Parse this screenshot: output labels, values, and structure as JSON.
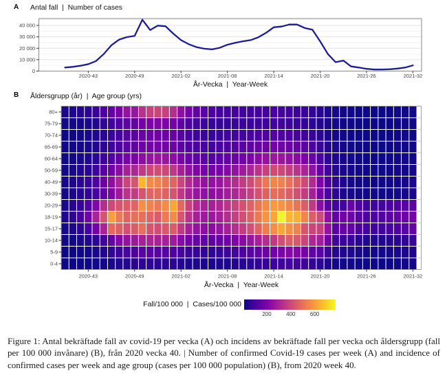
{
  "panel_a": {
    "label": "A",
    "title": "Antal fall  |  Number of cases",
    "x_axis_title": "År-Vecka  |  Year-Week"
  },
  "panel_b": {
    "label": "B",
    "title": "Åldersgrupp (år)  |  Age group (yrs)",
    "x_axis_title": "År-Vecka  |  Year-Week"
  },
  "legend": {
    "label": "Fall/100 000  |  Cases/100 000",
    "ticks": [
      200,
      400,
      600
    ],
    "domain": [
      10,
      775
    ]
  },
  "caption": "Figure 1: Antal bekräftade fall av covid-19 per vecka (A) och incidens av bekräftade fall per vecka och åldersgrupp (fall per 100 000 invånare) (B), från 2020 vecka 40. | Number of confirmed Covid-19 cases per week (A) and incidence of confirmed cases per week and age group (cases per 100 000 population) (B), from 2020 week 40.",
  "chart_data": [
    {
      "type": "line",
      "title": "Antal fall | Number of cases",
      "xlabel": "År-Vecka | Year-Week",
      "ylabel": "",
      "line_color": "#1c1c99",
      "ylim": [
        0,
        46000
      ],
      "grid": true,
      "x": [
        "2020-40",
        "2020-41",
        "2020-42",
        "2020-43",
        "2020-44",
        "2020-45",
        "2020-46",
        "2020-47",
        "2020-48",
        "2020-49",
        "2020-50",
        "2020-51",
        "2020-52",
        "2020-53",
        "2021-01",
        "2021-02",
        "2021-03",
        "2021-04",
        "2021-05",
        "2021-06",
        "2021-07",
        "2021-08",
        "2021-09",
        "2021-10",
        "2021-11",
        "2021-12",
        "2021-13",
        "2021-14",
        "2021-15",
        "2021-16",
        "2021-17",
        "2021-18",
        "2021-19",
        "2021-20",
        "2021-21",
        "2021-22",
        "2021-23",
        "2021-24",
        "2021-25",
        "2021-26",
        "2021-27",
        "2021-28",
        "2021-29",
        "2021-30",
        "2021-31",
        "2021-32"
      ],
      "values": [
        3100,
        3700,
        4700,
        6100,
        8800,
        14900,
        22700,
        27600,
        29800,
        30800,
        45000,
        36000,
        39800,
        39300,
        32800,
        27100,
        23500,
        21000,
        19600,
        19000,
        20400,
        23100,
        24700,
        26100,
        27100,
        29600,
        33500,
        38400,
        39000,
        40800,
        40800,
        37800,
        36300,
        26100,
        14900,
        7800,
        9200,
        4100,
        3100,
        2000,
        1400,
        1400,
        1600,
        2200,
        3100,
        5000
      ],
      "x_ticks": [
        "2020-43",
        "2020-49",
        "2021-02",
        "2021-08",
        "2021-14",
        "2021-20",
        "2021-26",
        "2021-32"
      ],
      "y_ticks": [
        0,
        10000,
        20000,
        30000,
        40000
      ],
      "y_tick_labels": [
        "0",
        "10 000",
        "20 000",
        "30 000",
        "40 000"
      ]
    },
    {
      "type": "heatmap",
      "title": "Åldersgrupp (år) | Age group (yrs)",
      "xlabel": "År-Vecka | Year-Week",
      "colormap": "plasma",
      "domain": [
        10,
        775
      ],
      "colorbar_label": "Fall/100 000 | Cases/100 000",
      "colorbar_ticks": [
        200,
        400,
        600
      ],
      "x": [
        "2020-40",
        "2020-41",
        "2020-42",
        "2020-43",
        "2020-44",
        "2020-45",
        "2020-46",
        "2020-47",
        "2020-48",
        "2020-49",
        "2020-50",
        "2020-51",
        "2020-52",
        "2020-53",
        "2021-01",
        "2021-02",
        "2021-03",
        "2021-04",
        "2021-05",
        "2021-06",
        "2021-07",
        "2021-08",
        "2021-09",
        "2021-10",
        "2021-11",
        "2021-12",
        "2021-13",
        "2021-14",
        "2021-15",
        "2021-16",
        "2021-17",
        "2021-18",
        "2021-19",
        "2021-20",
        "2021-21",
        "2021-22",
        "2021-23",
        "2021-24",
        "2021-25",
        "2021-26",
        "2021-27",
        "2021-28",
        "2021-29",
        "2021-30",
        "2021-31",
        "2021-32"
      ],
      "x_ticks": [
        "2020-43",
        "2020-49",
        "2021-02",
        "2021-08",
        "2021-14",
        "2021-20",
        "2021-26",
        "2021-32"
      ],
      "y_rows_top_to_bottom": [
        "80+",
        "75-79",
        "70-74",
        "65-69",
        "60-64",
        "50-59",
        "40-49",
        "30-39",
        "20-29",
        "18-19",
        "15-17",
        "10-14",
        "5-9",
        "0-4"
      ],
      "values_by_row": [
        [
          30,
          35,
          45,
          60,
          80,
          110,
          150,
          200,
          250,
          260,
          340,
          380,
          390,
          380,
          330,
          240,
          185,
          150,
          130,
          112,
          100,
          95,
          92,
          90,
          90,
          92,
          95,
          100,
          96,
          90,
          84,
          78,
          68,
          50,
          34,
          24,
          18,
          14,
          12,
          10,
          10,
          10,
          11,
          13,
          15,
          17
        ],
        [
          15,
          18,
          22,
          30,
          42,
          62,
          88,
          115,
          142,
          152,
          182,
          202,
          210,
          204,
          182,
          142,
          112,
          92,
          82,
          76,
          72,
          71,
          73,
          76,
          79,
          82,
          86,
          89,
          86,
          81,
          75,
          69,
          59,
          44,
          30,
          20,
          15,
          12,
          10,
          9,
          9,
          9,
          10,
          12,
          14,
          16
        ],
        [
          12,
          15,
          20,
          28,
          38,
          55,
          76,
          100,
          126,
          136,
          156,
          170,
          176,
          170,
          155,
          126,
          101,
          86,
          80,
          79,
          81,
          86,
          91,
          96,
          102,
          110,
          117,
          121,
          116,
          109,
          99,
          89,
          75,
          55,
          35,
          22,
          16,
          12,
          10,
          9,
          9,
          9,
          10,
          12,
          14,
          16
        ],
        [
          12,
          15,
          21,
          30,
          43,
          62,
          86,
          112,
          137,
          147,
          167,
          181,
          187,
          181,
          166,
          137,
          116,
          101,
          96,
          96,
          102,
          112,
          122,
          132,
          143,
          158,
          172,
          182,
          177,
          166,
          151,
          136,
          111,
          76,
          46,
          28,
          20,
          15,
          12,
          10,
          10,
          10,
          12,
          14,
          16,
          18
        ],
        [
          15,
          21,
          29,
          41,
          57,
          82,
          117,
          152,
          187,
          202,
          232,
          257,
          266,
          257,
          232,
          192,
          161,
          141,
          131,
          129,
          136,
          151,
          166,
          182,
          202,
          227,
          252,
          266,
          261,
          246,
          226,
          201,
          161,
          106,
          61,
          36,
          25,
          18,
          14,
          12,
          12,
          12,
          14,
          16,
          18,
          20
        ],
        [
          21,
          29,
          41,
          59,
          86,
          126,
          176,
          231,
          291,
          311,
          361,
          396,
          411,
          396,
          356,
          291,
          241,
          206,
          191,
          186,
          196,
          221,
          246,
          271,
          301,
          341,
          381,
          406,
          396,
          371,
          341,
          301,
          241,
          156,
          86,
          50,
          32,
          22,
          17,
          14,
          13,
          13,
          15,
          18,
          22,
          26
        ],
        [
          26,
          36,
          51,
          76,
          111,
          166,
          236,
          311,
          391,
          431,
          651,
          561,
          541,
          511,
          471,
          391,
          321,
          271,
          251,
          246,
          261,
          296,
          331,
          366,
          406,
          461,
          516,
          551,
          536,
          501,
          456,
          401,
          321,
          201,
          111,
          61,
          38,
          26,
          20,
          16,
          15,
          15,
          17,
          21,
          26,
          32
        ],
        [
          22,
          31,
          46,
          66,
          96,
          146,
          206,
          271,
          341,
          366,
          431,
          471,
          481,
          466,
          431,
          356,
          296,
          256,
          241,
          236,
          251,
          281,
          311,
          341,
          376,
          421,
          466,
          491,
          481,
          451,
          416,
          366,
          291,
          186,
          101,
          56,
          35,
          24,
          19,
          15,
          14,
          14,
          16,
          20,
          25,
          30
        ],
        [
          31,
          45,
          70,
          120,
          210,
          330,
          400,
          430,
          450,
          471,
          571,
          541,
          521,
          561,
          621,
          481,
          381,
          321,
          296,
          291,
          311,
          346,
          386,
          421,
          461,
          511,
          561,
          591,
          581,
          551,
          511,
          451,
          361,
          231,
          131,
          85,
          95,
          165,
          115,
          85,
          85,
          95,
          110,
          120,
          130,
          140
        ],
        [
          40,
          60,
          100,
          180,
          300,
          430,
          600,
          520,
          470,
          500,
          500,
          471,
          451,
          521,
          561,
          431,
          341,
          291,
          271,
          266,
          291,
          331,
          376,
          416,
          461,
          521,
          581,
          621,
          771,
          651,
          641,
          551,
          451,
          401,
          241,
          150,
          180,
          170,
          130,
          105,
          110,
          125,
          140,
          155,
          170,
          185
        ],
        [
          25,
          35,
          55,
          100,
          180,
          300,
          480,
          460,
          420,
          450,
          500,
          431,
          411,
          441,
          451,
          361,
          291,
          251,
          236,
          231,
          256,
          291,
          331,
          371,
          416,
          471,
          531,
          571,
          621,
          571,
          546,
          431,
          391,
          381,
          251,
          131,
          161,
          151,
          111,
          91,
          86,
          91,
          101,
          116,
          131,
          151
        ],
        [
          15,
          20,
          28,
          42,
          62,
          92,
          150,
          220,
          250,
          270,
          292,
          302,
          297,
          292,
          272,
          222,
          182,
          157,
          147,
          144,
          156,
          176,
          201,
          226,
          256,
          291,
          331,
          361,
          411,
          451,
          441,
          391,
          311,
          281,
          181,
          91,
          81,
          76,
          56,
          41,
          38,
          41,
          47,
          56,
          66,
          76
        ],
        [
          8,
          10,
          14,
          20,
          30,
          44,
          62,
          82,
          102,
          112,
          127,
          132,
          129,
          127,
          117,
          97,
          80,
          70,
          66,
          65,
          72,
          82,
          95,
          108,
          124,
          143,
          163,
          178,
          198,
          218,
          213,
          188,
          148,
          131,
          86,
          46,
          41,
          38,
          28,
          21,
          19,
          21,
          24,
          29,
          34,
          40
        ],
        [
          5,
          6,
          8,
          11,
          15,
          21,
          29,
          38,
          47,
          51,
          58,
          61,
          59,
          58,
          54,
          45,
          37,
          33,
          31,
          30,
          33,
          38,
          44,
          49,
          56,
          64,
          73,
          79,
          87,
          95,
          92,
          82,
          65,
          57,
          38,
          21,
          18,
          17,
          13,
          11,
          10,
          11,
          12,
          14,
          17,
          19
        ]
      ],
      "colormap_stops": [
        [
          0.0,
          "#0d0887"
        ],
        [
          0.125,
          "#4b03a1"
        ],
        [
          0.25,
          "#7d03a8"
        ],
        [
          0.375,
          "#a82296"
        ],
        [
          0.5,
          "#cb4679"
        ],
        [
          0.625,
          "#e56b5d"
        ],
        [
          0.75,
          "#f89441"
        ],
        [
          0.875,
          "#fdc328"
        ],
        [
          1.0,
          "#f0f921"
        ]
      ]
    }
  ]
}
